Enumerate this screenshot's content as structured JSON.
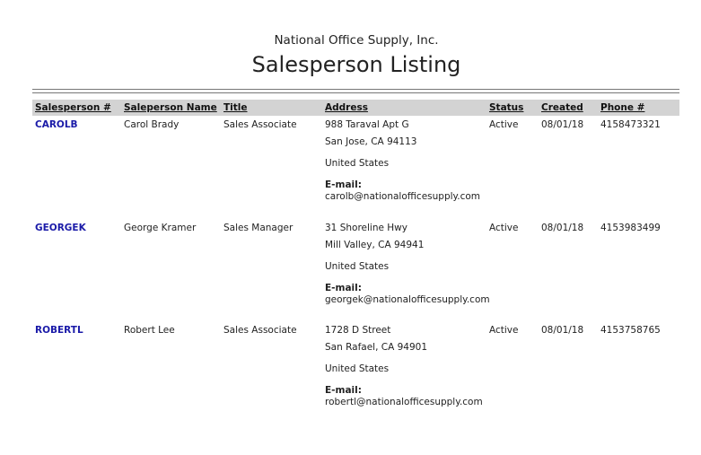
{
  "report": {
    "company": "National Office Supply, Inc.",
    "title": "Salesperson Listing"
  },
  "columns": [
    "Salesperson #",
    "Saleperson Name",
    "Title",
    "Address",
    "Status",
    "Created",
    "Phone #"
  ],
  "email_label": "E-mail:",
  "rows": [
    {
      "id": "CAROLB",
      "name": "Carol Brady",
      "title": "Sales Associate",
      "street": "988 Taraval Apt G",
      "city": "San Jose, CA 94113",
      "country": "United States",
      "email": "carolb@nationalofficesupply.com",
      "status": "Active",
      "created": "08/01/18",
      "phone": "4158473321"
    },
    {
      "id": "GEORGEK",
      "name": "George Kramer",
      "title": "Sales Manager",
      "street": "31 Shoreline Hwy",
      "city": "Mill Valley, CA 94941",
      "country": "United States",
      "email": "georgek@nationalofficesupply.com",
      "status": "Active",
      "created": "08/01/18",
      "phone": "4153983499"
    },
    {
      "id": "ROBERTL",
      "name": "Robert Lee",
      "title": "Sales Associate",
      "street": "1728 D Street",
      "city": "San Rafael, CA 94901",
      "country": "United States",
      "email": "robertl@nationalofficesupply.com",
      "status": "Active",
      "created": "08/01/18",
      "phone": "4153758765"
    }
  ]
}
